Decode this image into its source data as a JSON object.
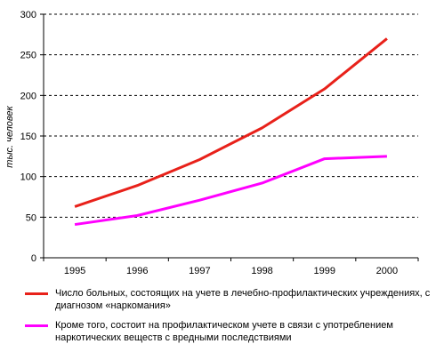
{
  "chart_data": {
    "type": "line",
    "title": "",
    "xlabel": "",
    "ylabel": "тыс. человек",
    "categories": [
      "1995",
      "1996",
      "1997",
      "1998",
      "1999",
      "2000"
    ],
    "ylim": [
      0,
      300
    ],
    "yticks": [
      0,
      50,
      100,
      150,
      200,
      250,
      300
    ],
    "grid": "horizontal dashed",
    "legend_position": "bottom",
    "series": [
      {
        "name": "Число больных, состоящих на учете в лечебно-профилактических учреждениях, с диагнозом «наркомания»",
        "color": "#e8211a",
        "values": [
          63,
          89,
          121,
          160,
          208,
          270
        ]
      },
      {
        "name": "Кроме того, состоит на профилактическом учете в связи с употреблением наркотических веществ с вредными последствиями",
        "color": "#ff00ff",
        "values": [
          41,
          52,
          71,
          92,
          122,
          125
        ]
      }
    ]
  }
}
